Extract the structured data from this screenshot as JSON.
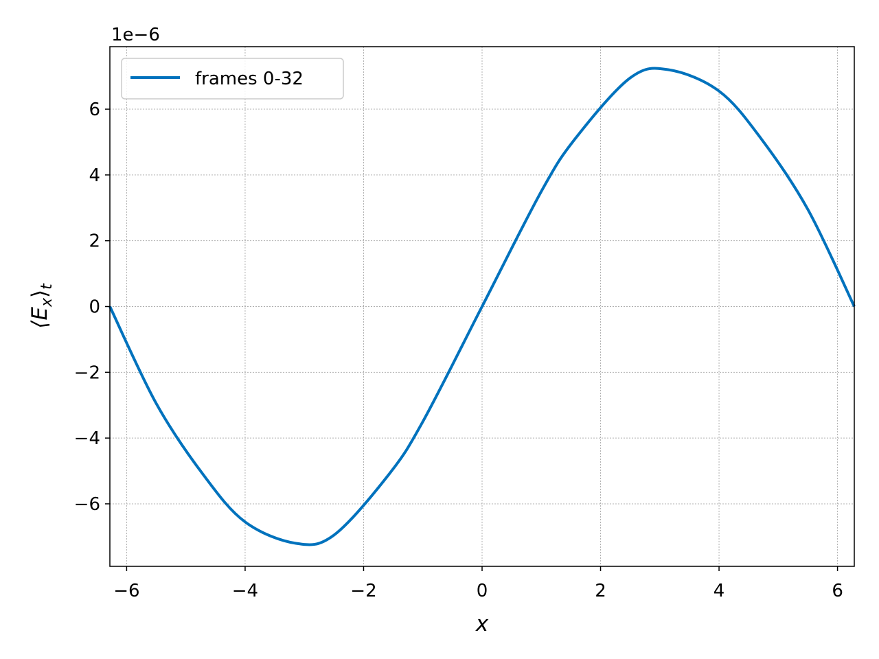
{
  "chart_data": {
    "type": "line",
    "title": "",
    "xlabel": "x",
    "ylabel": "⟨E",
    "ylabel_sub_x": "x",
    "ylabel_close": "⟩",
    "ylabel_sub_t": "t",
    "y_offset_text": "1e−6",
    "xlim": [
      -6.283,
      6.283
    ],
    "ylim": [
      -7.9,
      7.9
    ],
    "x_ticks": [
      -6,
      -4,
      -2,
      0,
      2,
      4,
      6
    ],
    "x_tick_labels": [
      "−6",
      "−4",
      "−2",
      "0",
      "2",
      "4",
      "6"
    ],
    "y_ticks": [
      -6,
      -4,
      -2,
      0,
      2,
      4,
      6
    ],
    "y_tick_labels": [
      "−6",
      "−4",
      "−2",
      "0",
      "2",
      "4",
      "6"
    ],
    "grid": true,
    "legend_position": "top-left",
    "series": [
      {
        "name": "frames 0-32",
        "color": "#0072bd",
        "x": [
          -6.283,
          -5.5,
          -4.712,
          -4.0,
          -3.142,
          -2.5,
          -1.571,
          -1.0,
          0.0,
          1.0,
          1.571,
          2.5,
          3.142,
          4.0,
          4.712,
          5.5,
          6.283
        ],
        "y": [
          0.0,
          -2.95,
          -5.1,
          -6.55,
          -7.2,
          -6.95,
          -5.1,
          -3.5,
          0.0,
          3.5,
          5.1,
          6.95,
          7.2,
          6.55,
          5.1,
          2.95,
          0.0
        ]
      }
    ]
  }
}
